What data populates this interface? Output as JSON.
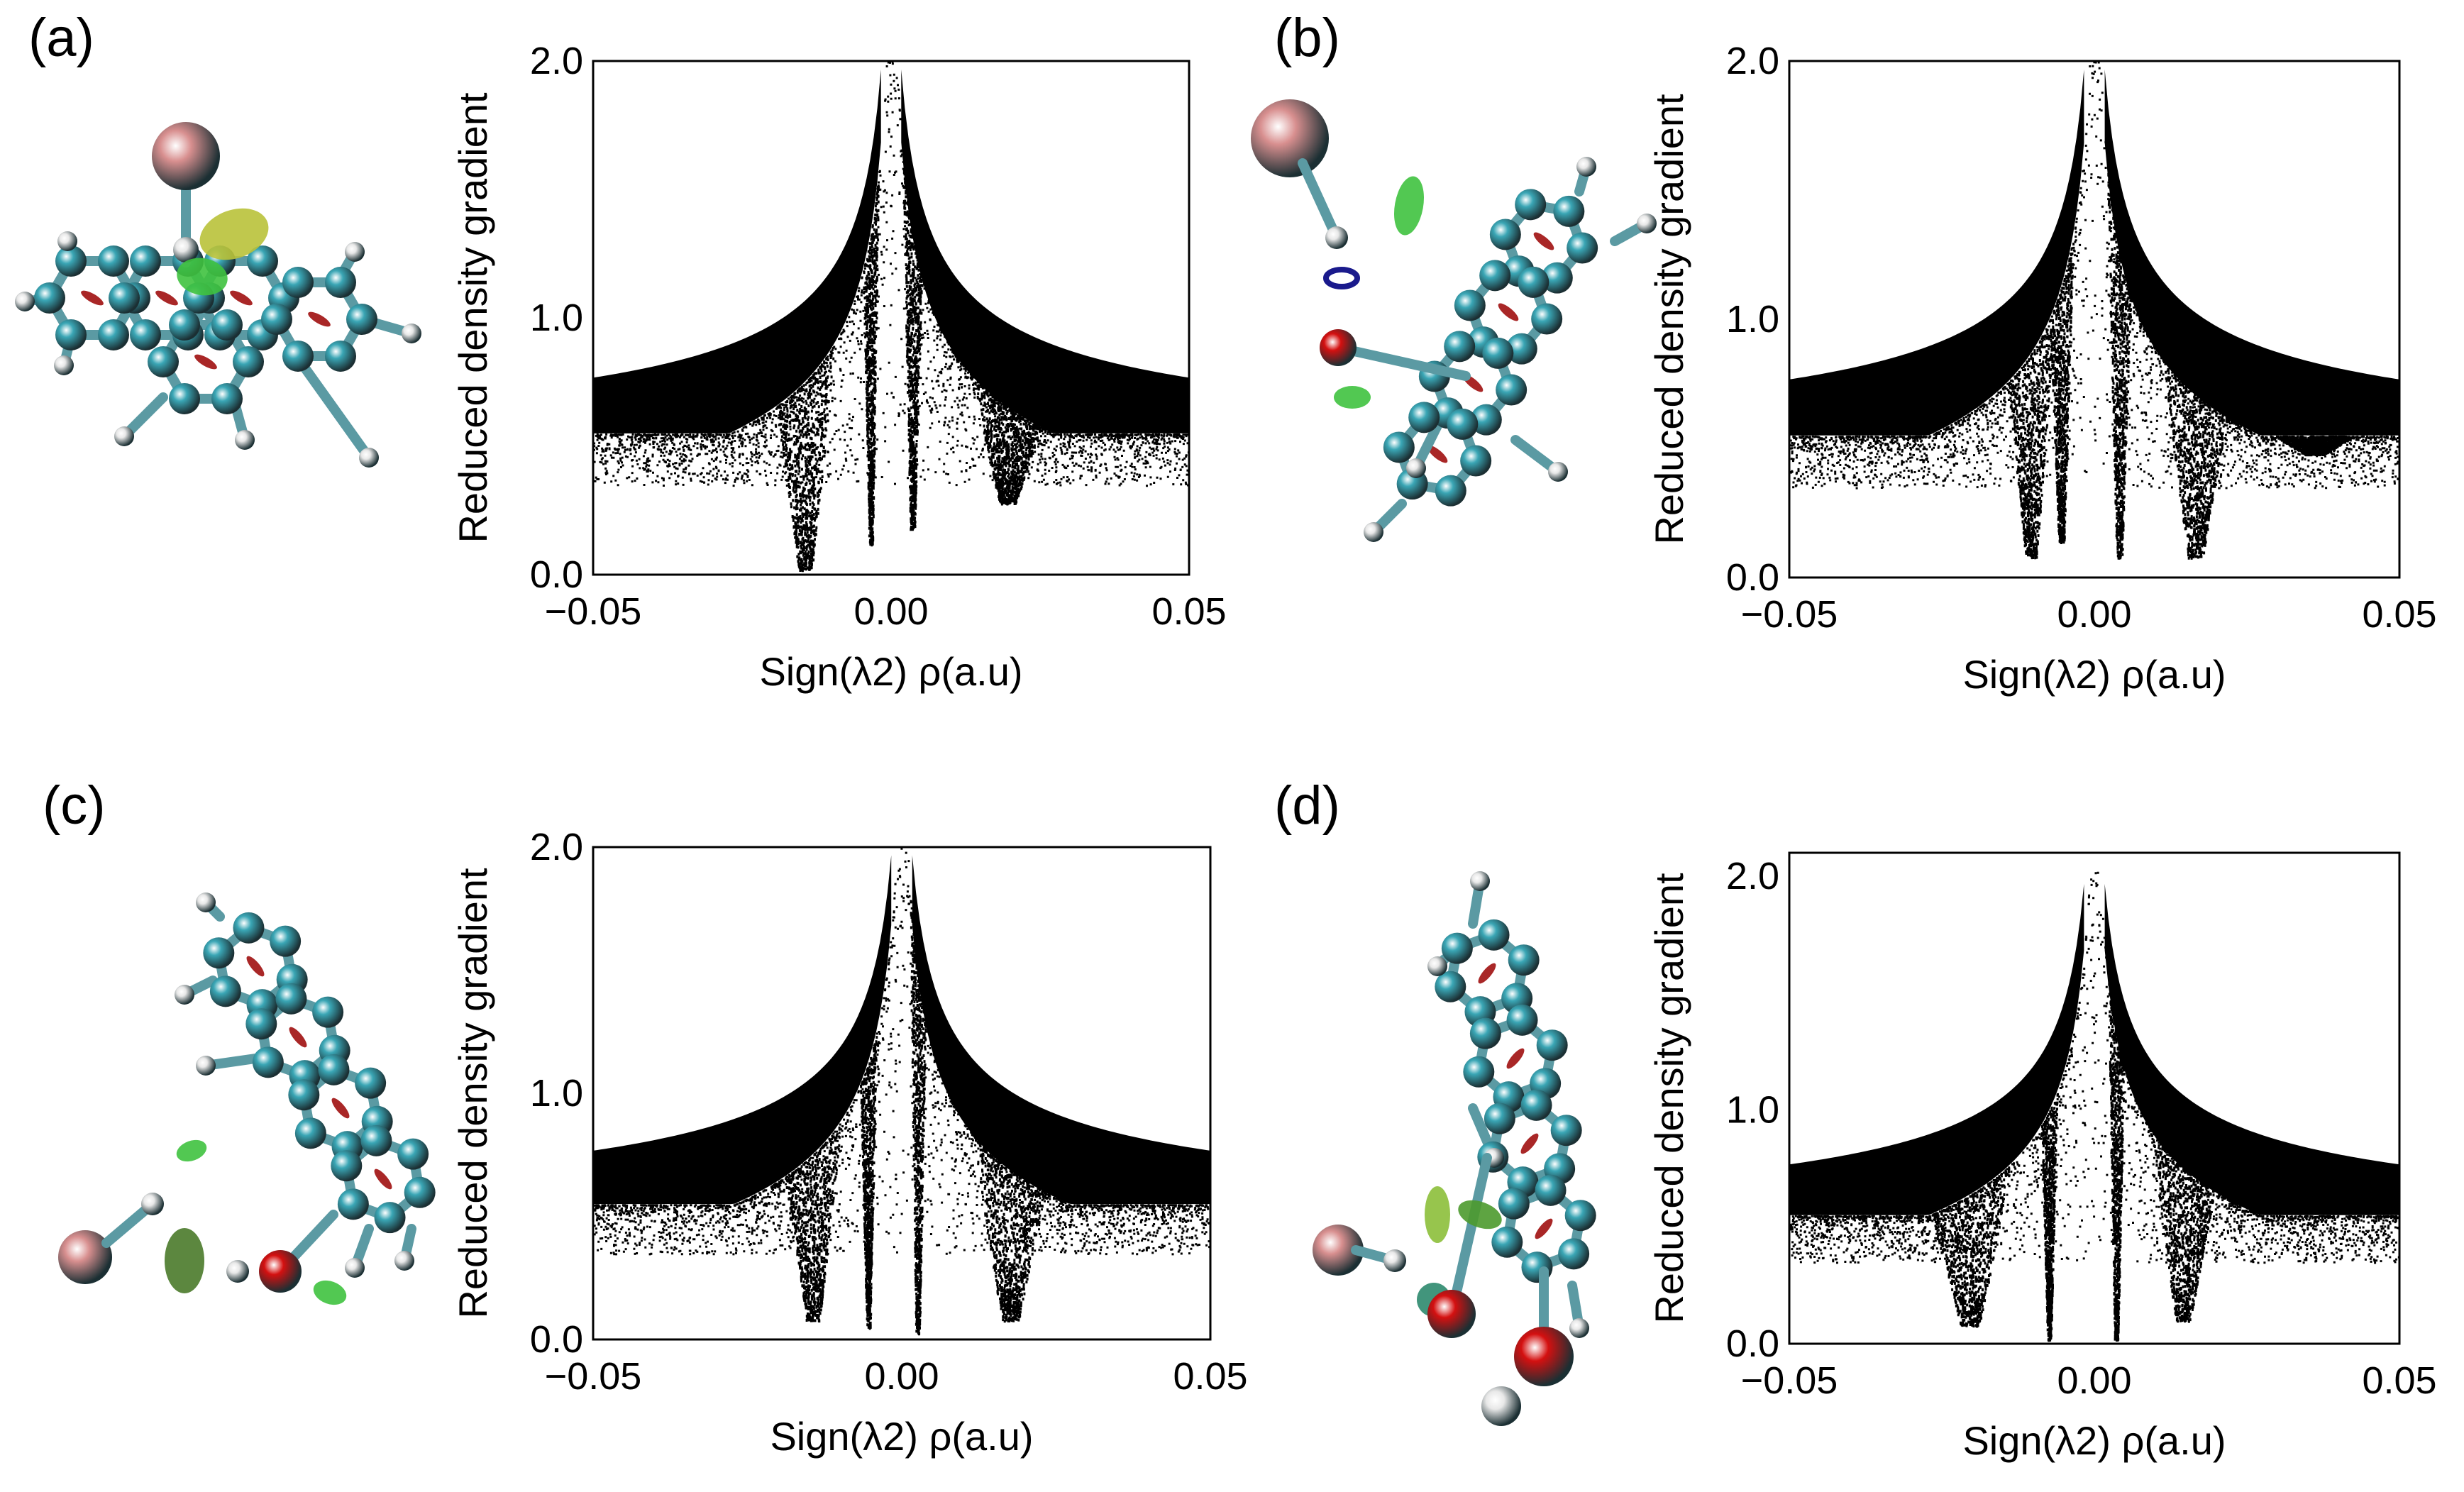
{
  "panels": [
    {
      "label": "(a)"
    },
    {
      "label": "(b)"
    },
    {
      "label": "(c)"
    },
    {
      "label": "(d)"
    }
  ],
  "colors": {
    "carbon": "#3aa6b5",
    "hydrogen": "#e8e8e8",
    "oxygen": "#d41010",
    "bromine": "#d88f8f",
    "bond": "#5b9aa3",
    "ring_crit": "#a01010",
    "vdw_isosurface": "#3fc23f",
    "hbond_isosurface": "#1a1a8c",
    "points": "#000000"
  },
  "chart_data": [
    {
      "panel": "(a)",
      "type": "scatter",
      "xlabel": "Sign(λ2) ρ(a.u)",
      "ylabel": "Reduced density gradient",
      "xlim": [
        -0.05,
        0.05
      ],
      "ylim": [
        0,
        2.0
      ],
      "xticks": [
        "−0.05",
        "0.00",
        "0.05"
      ],
      "yticks": [
        "0.0",
        "1.0",
        "2.0"
      ],
      "spikes": [
        {
          "x": -0.0145,
          "min_y": 0.02,
          "width": 0.0075
        },
        {
          "x": -0.0035,
          "min_y": 0.12,
          "width": 0.002
        },
        {
          "x": 0.0035,
          "min_y": 0.18,
          "width": 0.0025
        },
        {
          "x": 0.0195,
          "min_y": 0.28,
          "width": 0.009
        }
      ]
    },
    {
      "panel": "(b)",
      "type": "scatter",
      "xlabel": "Sign(λ2) ρ(a.u)",
      "ylabel": "Reduced density gradient",
      "xlim": [
        -0.05,
        0.05
      ],
      "ylim": [
        0,
        2.0
      ],
      "xticks": [
        "−0.05",
        "0.00",
        "0.05"
      ],
      "yticks": [
        "0.0",
        "1.0",
        "2.0"
      ],
      "spikes": [
        {
          "x": -0.0105,
          "min_y": 0.08,
          "width": 0.006
        },
        {
          "x": -0.0055,
          "min_y": 0.14,
          "width": 0.003
        },
        {
          "x": 0.004,
          "min_y": 0.08,
          "width": 0.003
        },
        {
          "x": 0.0165,
          "min_y": 0.08,
          "width": 0.008
        },
        {
          "x": 0.036,
          "min_y": 0.48,
          "width": 0.01
        }
      ]
    },
    {
      "panel": "(c)",
      "type": "scatter",
      "xlabel": "Sign(λ2) ρ(a.u)",
      "ylabel": "Reduced density gradient",
      "xlim": [
        -0.05,
        0.05
      ],
      "ylim": [
        0,
        2.0
      ],
      "xticks": [
        "−0.05",
        "0.00",
        "0.05"
      ],
      "yticks": [
        "0.0",
        "1.0",
        "2.0"
      ],
      "spikes": [
        {
          "x": -0.0145,
          "min_y": 0.08,
          "width": 0.007
        },
        {
          "x": -0.0055,
          "min_y": 0.05,
          "width": 0.002
        },
        {
          "x": 0.0025,
          "min_y": 0.02,
          "width": 0.002
        },
        {
          "x": 0.0175,
          "min_y": 0.08,
          "width": 0.009
        }
      ]
    },
    {
      "panel": "(d)",
      "type": "scatter",
      "xlabel": "Sign(λ2) ρ(a.u)",
      "ylabel": "Reduced density gradient",
      "xlim": [
        -0.05,
        0.05
      ],
      "ylim": [
        0,
        2.1
      ],
      "xticks": [
        "−0.05",
        "0.00",
        "0.05"
      ],
      "yticks": [
        "0.0",
        "1.0",
        "2.0"
      ],
      "spikes": [
        {
          "x": -0.0205,
          "min_y": 0.08,
          "width": 0.01
        },
        {
          "x": -0.0075,
          "min_y": 0.02,
          "width": 0.002
        },
        {
          "x": 0.0035,
          "min_y": 0.02,
          "width": 0.002
        },
        {
          "x": 0.0145,
          "min_y": 0.1,
          "width": 0.008
        }
      ]
    }
  ]
}
